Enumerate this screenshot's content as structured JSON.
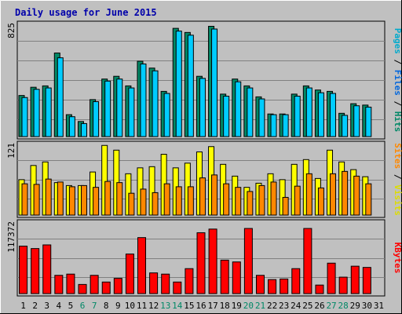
{
  "chart_data": {
    "type": "bar",
    "title": "Daily usage for June 2015",
    "categories": [
      "1",
      "2",
      "3",
      "4",
      "5",
      "6",
      "7",
      "8",
      "9",
      "10",
      "11",
      "12",
      "13",
      "14",
      "15",
      "16",
      "17",
      "18",
      "19",
      "20",
      "21",
      "22",
      "23",
      "24",
      "25",
      "26",
      "27",
      "28",
      "29",
      "30",
      "31"
    ],
    "weekend_days": [
      "6",
      "7",
      "13",
      "14",
      "20",
      "21",
      "27",
      "28"
    ],
    "panels": [
      {
        "id": "pages-files-hits",
        "max_label": "825",
        "ymax": 825,
        "side_labels": [
          {
            "text": "Pages",
            "color": "#00aacc"
          },
          {
            "text": "Files",
            "color": "#0066dd"
          },
          {
            "text": "Hits",
            "color": "#008866"
          }
        ],
        "series": [
          {
            "name": "Hits",
            "color": "#008866",
            "values": [
              300,
              360,
              370,
              610,
              160,
              110,
              270,
              420,
              440,
              370,
              550,
              500,
              330,
              790,
              760,
              440,
              805,
              310,
              420,
              370,
              290,
              165,
              165,
              310,
              370,
              340,
              330,
              170,
              240,
              230,
              0
            ]
          },
          {
            "name": "Files",
            "color": "#00ccff",
            "values": [
              285,
              345,
              355,
              575,
              145,
              95,
              255,
              405,
              420,
              355,
              530,
              480,
              315,
              770,
              740,
              425,
              785,
              295,
              400,
              355,
              275,
              160,
              160,
              295,
              355,
              320,
              315,
              155,
              225,
              215,
              0
            ]
          }
        ]
      },
      {
        "id": "sites-visits",
        "max_label": "121",
        "ymax": 121,
        "side_labels": [
          {
            "text": "Sites",
            "color": "#ff8800"
          },
          {
            "text": "Visits",
            "color": "#dddd00"
          }
        ],
        "series": [
          {
            "name": "Visits",
            "color": "#ffff00",
            "values": [
              60,
              84,
              90,
              55,
              50,
              50,
              73,
              118,
              110,
              70,
              80,
              82,
              103,
              80,
              88,
              107,
              116,
              86,
              66,
              47,
              54,
              70,
              60,
              86,
              94,
              62,
              110,
              90,
              77,
              65,
              0
            ]
          },
          {
            "name": "Sites",
            "color": "#ff8800",
            "values": [
              53,
              52,
              61,
              56,
              48,
              50,
              47,
              57,
              55,
              37,
              44,
              38,
              53,
              48,
              48,
              63,
              68,
              53,
              47,
              40,
              50,
              56,
              30,
              49,
              70,
              46,
              70,
              74,
              66,
              53,
              0
            ]
          }
        ]
      },
      {
        "id": "kbytes",
        "max_label": "117372",
        "ymax": 117372,
        "side_labels": [
          {
            "text": "KBytes",
            "color": "#ff0000"
          }
        ],
        "series": [
          {
            "name": "KBytes",
            "color": "#ff0000",
            "values": [
              78000,
              74000,
              80000,
              30000,
              32000,
              15000,
              30000,
              19000,
              25000,
              65000,
              92000,
              34000,
              32000,
              19000,
              41000,
              100000,
              106000,
              55000,
              52000,
              107000,
              30000,
              23000,
              24000,
              41000,
              107000,
              14000,
              50000,
              27000,
              45000,
              43000,
              0
            ]
          }
        ]
      }
    ]
  }
}
